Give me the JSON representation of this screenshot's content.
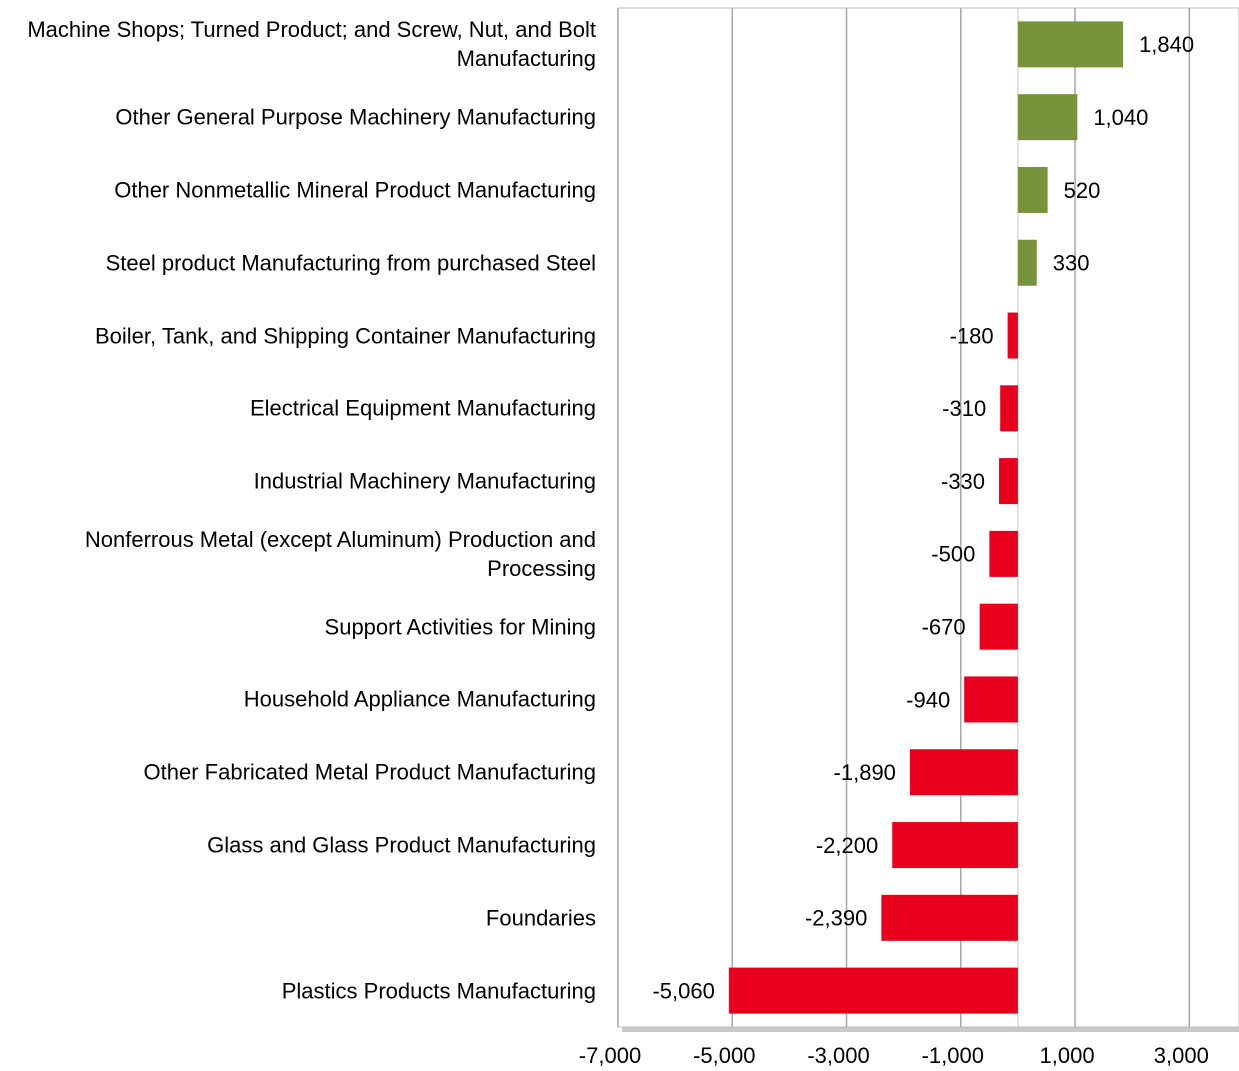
{
  "chart_data": {
    "type": "hbar",
    "categories": [
      "Machine Shops; Turned Product; and Screw, Nut, and Bolt Manufacturing",
      "Other General Purpose Machinery Manufacturing",
      "Other Nonmetallic Mineral Product Manufacturing",
      "Steel product Manufacturing from purchased Steel",
      "Boiler, Tank, and Shipping Container Manufacturing",
      "Electrical Equipment Manufacturing",
      "Industrial Machinery Manufacturing",
      "Nonferrous Metal (except Aluminum) Production and Processing",
      "Support Activities for Mining",
      "Household Appliance Manufacturing",
      "Other Fabricated Metal Product Manufacturing",
      "Glass and Glass Product Manufacturing",
      "Foundaries",
      "Plastics Products Manufacturing"
    ],
    "values": [
      1840,
      1040,
      520,
      330,
      -180,
      -310,
      -330,
      -500,
      -670,
      -940,
      -1890,
      -2200,
      -2390,
      -5060
    ],
    "value_labels": [
      "1,840",
      "1,040",
      "520",
      "330",
      "-180",
      "-310",
      "-330",
      "-500",
      "-670",
      "-940",
      "-1,890",
      "-2,200",
      "-2,390",
      "-5,060"
    ],
    "positive_color": "#77933c",
    "negative_color": "#e8001c",
    "xlim": [
      -7000,
      3870
    ],
    "xticks": [
      {
        "value": -7000,
        "label": "-7,000"
      },
      {
        "value": -5000,
        "label": "-5,000"
      },
      {
        "value": -3000,
        "label": "-3,000"
      },
      {
        "value": -1000,
        "label": "-1,000"
      },
      {
        "value": 1000,
        "label": "1,000"
      },
      {
        "value": 3000,
        "label": "3,000"
      }
    ],
    "grid": true
  }
}
